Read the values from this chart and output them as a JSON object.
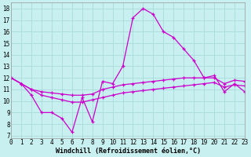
{
  "x": [
    0,
    1,
    2,
    3,
    4,
    5,
    6,
    7,
    8,
    9,
    10,
    11,
    12,
    13,
    14,
    15,
    16,
    17,
    18,
    19,
    20,
    21,
    22,
    23
  ],
  "line1": [
    12.0,
    11.5,
    10.5,
    9.0,
    9.0,
    8.5,
    7.3,
    10.3,
    8.2,
    11.7,
    11.5,
    13.0,
    17.2,
    18.0,
    17.5,
    16.0,
    15.5,
    14.5,
    13.5,
    12.0,
    12.2,
    10.8,
    11.5,
    10.8
  ],
  "line2": [
    12.0,
    11.5,
    11.0,
    10.8,
    10.7,
    10.6,
    10.5,
    10.5,
    10.6,
    11.0,
    11.2,
    11.4,
    11.5,
    11.6,
    11.7,
    11.8,
    11.9,
    12.0,
    12.0,
    12.0,
    12.0,
    11.5,
    11.8,
    11.7
  ],
  "line3": [
    12.0,
    11.5,
    11.0,
    10.5,
    10.3,
    10.1,
    9.9,
    9.9,
    10.1,
    10.3,
    10.5,
    10.7,
    10.8,
    10.9,
    11.0,
    11.1,
    11.2,
    11.3,
    11.4,
    11.5,
    11.6,
    11.2,
    11.4,
    11.3
  ],
  "line_color": "#cc00cc",
  "bg_color": "#c8f0f0",
  "grid_color": "#aadada",
  "xlabel": "Windchill (Refroidissement éolien,°C)",
  "ylabel_ticks": [
    7,
    8,
    9,
    10,
    11,
    12,
    13,
    14,
    15,
    16,
    17,
    18
  ],
  "xlim": [
    0,
    23
  ],
  "ylim": [
    6.8,
    18.5
  ],
  "tick_fontsize": 5.5,
  "xlabel_fontsize": 6.0
}
